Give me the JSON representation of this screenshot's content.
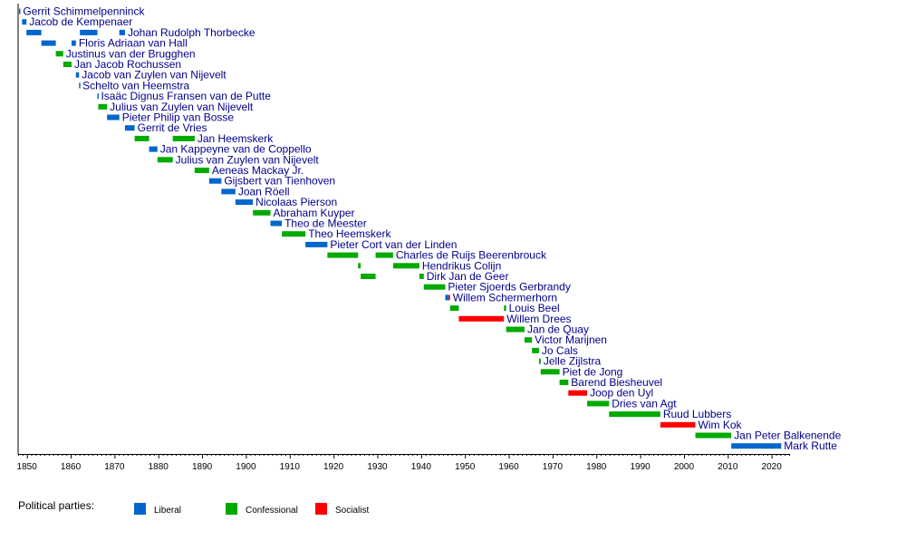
{
  "chart_data": {
    "type": "bar",
    "orientation": "horizontal-timeline",
    "xlim": [
      1848,
      2024
    ],
    "ticks": [
      1850,
      1860,
      1870,
      1880,
      1890,
      1900,
      1910,
      1920,
      1930,
      1940,
      1950,
      1960,
      1970,
      1980,
      1990,
      2000,
      2010,
      2020
    ],
    "legend_title": "Political parties:",
    "legend_position": "bottom-left",
    "parties": [
      {
        "key": "L",
        "label": "Liberal",
        "color": "#0066cc"
      },
      {
        "key": "C",
        "label": "Confessional",
        "color": "#00aa00"
      },
      {
        "key": "S",
        "label": "Socialist",
        "color": "#ff0000"
      }
    ],
    "rows": [
      {
        "name": "Gerrit Schimmelpenninck",
        "terms": [
          {
            "start": 1848.2,
            "end": 1848.5,
            "party": "L"
          }
        ]
      },
      {
        "name": "Jacob de Kempenaer",
        "terms": [
          {
            "start": 1848.9,
            "end": 1849.9,
            "party": "L"
          }
        ]
      },
      {
        "name": "Johan Rudolph Thorbecke",
        "terms": [
          {
            "start": 1849.9,
            "end": 1853.3,
            "party": "L"
          },
          {
            "start": 1862.1,
            "end": 1866.1,
            "party": "L"
          },
          {
            "start": 1871.1,
            "end": 1872.4,
            "party": "L"
          }
        ]
      },
      {
        "name": "Floris Adriaan van Hall",
        "terms": [
          {
            "start": 1853.3,
            "end": 1856.6,
            "party": "L"
          },
          {
            "start": 1860.2,
            "end": 1861.2,
            "party": "L"
          }
        ]
      },
      {
        "name": "Justinus van der Brugghen",
        "terms": [
          {
            "start": 1856.6,
            "end": 1858.3,
            "party": "C"
          }
        ]
      },
      {
        "name": "Jan Jacob Rochussen",
        "terms": [
          {
            "start": 1858.3,
            "end": 1860.2,
            "party": "C"
          }
        ]
      },
      {
        "name": "Jacob van Zuylen van Nijevelt",
        "terms": [
          {
            "start": 1861.2,
            "end": 1861.9,
            "party": "L"
          }
        ]
      },
      {
        "name": "Schelto van Heemstra",
        "terms": [
          {
            "start": 1861.9,
            "end": 1862.1,
            "party": "L"
          }
        ]
      },
      {
        "name": "Isaäc Dignus Fransen van de Putte",
        "terms": [
          {
            "start": 1866.1,
            "end": 1866.3,
            "party": "L"
          }
        ]
      },
      {
        "name": "Julius van Zuylen van Nijevelt",
        "terms": [
          {
            "start": 1866.3,
            "end": 1868.3,
            "party": "C"
          }
        ]
      },
      {
        "name": "Pieter Philip van Bosse",
        "terms": [
          {
            "start": 1868.3,
            "end": 1871.1,
            "party": "L"
          }
        ]
      },
      {
        "name": "Gerrit de Vries",
        "terms": [
          {
            "start": 1872.4,
            "end": 1874.6,
            "party": "L"
          }
        ]
      },
      {
        "name": "Jan Heemskerk",
        "terms": [
          {
            "start": 1874.6,
            "end": 1877.9,
            "party": "C"
          },
          {
            "start": 1883.3,
            "end": 1888.3,
            "party": "C"
          }
        ]
      },
      {
        "name": "Jan Kappeyne van de Coppello",
        "terms": [
          {
            "start": 1877.9,
            "end": 1879.8,
            "party": "L"
          }
        ]
      },
      {
        "name": "Julius van Zuylen van Nijevelt",
        "terms": [
          {
            "start": 1879.8,
            "end": 1883.3,
            "party": "C"
          }
        ]
      },
      {
        "name": "Aeneas Mackay Jr.",
        "terms": [
          {
            "start": 1888.3,
            "end": 1891.6,
            "party": "C"
          }
        ]
      },
      {
        "name": "Gijsbert van Tienhoven",
        "terms": [
          {
            "start": 1891.6,
            "end": 1894.4,
            "party": "L"
          }
        ]
      },
      {
        "name": "Joan Röell",
        "terms": [
          {
            "start": 1894.4,
            "end": 1897.6,
            "party": "L"
          }
        ]
      },
      {
        "name": "Nicolaas Pierson",
        "terms": [
          {
            "start": 1897.6,
            "end": 1901.6,
            "party": "L"
          }
        ]
      },
      {
        "name": "Abraham Kuyper",
        "terms": [
          {
            "start": 1901.6,
            "end": 1905.6,
            "party": "C"
          }
        ]
      },
      {
        "name": "Theo de Meester",
        "terms": [
          {
            "start": 1905.6,
            "end": 1908.2,
            "party": "L"
          }
        ]
      },
      {
        "name": "Theo Heemskerk",
        "terms": [
          {
            "start": 1908.2,
            "end": 1913.6,
            "party": "C"
          }
        ]
      },
      {
        "name": "Pieter Cort van der Linden",
        "terms": [
          {
            "start": 1913.6,
            "end": 1918.6,
            "party": "L"
          }
        ]
      },
      {
        "name": "Charles de Ruijs Beerenbrouck",
        "terms": [
          {
            "start": 1918.6,
            "end": 1925.6,
            "party": "C"
          },
          {
            "start": 1929.6,
            "end": 1933.6,
            "party": "C"
          }
        ]
      },
      {
        "name": "Hendrikus Colijn",
        "terms": [
          {
            "start": 1925.6,
            "end": 1926.2,
            "party": "C"
          },
          {
            "start": 1933.6,
            "end": 1939.6,
            "party": "C"
          }
        ]
      },
      {
        "name": "Dirk Jan de Geer",
        "terms": [
          {
            "start": 1926.2,
            "end": 1929.6,
            "party": "C"
          },
          {
            "start": 1939.6,
            "end": 1940.6,
            "party": "C"
          }
        ]
      },
      {
        "name": "Pieter Sjoerds Gerbrandy",
        "terms": [
          {
            "start": 1940.6,
            "end": 1945.5,
            "party": "C"
          }
        ]
      },
      {
        "name": "Willem Schermerhorn",
        "terms": [
          {
            "start": 1945.5,
            "end": 1946.3,
            "party": "L"
          },
          {
            "start": 1946.3,
            "end": 1946.6,
            "party": "S"
          }
        ]
      },
      {
        "name": "Louis Beel",
        "terms": [
          {
            "start": 1946.6,
            "end": 1948.6,
            "party": "C"
          },
          {
            "start": 1958.9,
            "end": 1959.4,
            "party": "C"
          }
        ]
      },
      {
        "name": "Willem Drees",
        "terms": [
          {
            "start": 1948.6,
            "end": 1958.9,
            "party": "S"
          }
        ]
      },
      {
        "name": "Jan de Quay",
        "terms": [
          {
            "start": 1959.4,
            "end": 1963.6,
            "party": "C"
          }
        ]
      },
      {
        "name": "Victor Marijnen",
        "terms": [
          {
            "start": 1963.6,
            "end": 1965.3,
            "party": "C"
          }
        ]
      },
      {
        "name": "Jo Cals",
        "terms": [
          {
            "start": 1965.3,
            "end": 1966.9,
            "party": "C"
          }
        ]
      },
      {
        "name": "Jelle Zijlstra",
        "terms": [
          {
            "start": 1966.9,
            "end": 1967.3,
            "party": "C"
          }
        ]
      },
      {
        "name": "Piet de Jong",
        "terms": [
          {
            "start": 1967.3,
            "end": 1971.6,
            "party": "C"
          }
        ]
      },
      {
        "name": "Barend Biesheuvel",
        "terms": [
          {
            "start": 1971.6,
            "end": 1973.6,
            "party": "C"
          }
        ]
      },
      {
        "name": "Joop den Uyl",
        "terms": [
          {
            "start": 1973.6,
            "end": 1977.9,
            "party": "S"
          }
        ]
      },
      {
        "name": "Dries van Agt",
        "terms": [
          {
            "start": 1977.9,
            "end": 1982.9,
            "party": "C"
          }
        ]
      },
      {
        "name": "Ruud Lubbers",
        "terms": [
          {
            "start": 1982.9,
            "end": 1994.6,
            "party": "C"
          }
        ]
      },
      {
        "name": "Wim Kok",
        "terms": [
          {
            "start": 1994.6,
            "end": 2002.6,
            "party": "S"
          }
        ]
      },
      {
        "name": "Jan Peter Balkenende",
        "terms": [
          {
            "start": 2002.6,
            "end": 2010.8,
            "party": "C"
          }
        ]
      },
      {
        "name": "Mark Rutte",
        "terms": [
          {
            "start": 2010.8,
            "end": 2022.2,
            "party": "L"
          }
        ]
      }
    ]
  }
}
